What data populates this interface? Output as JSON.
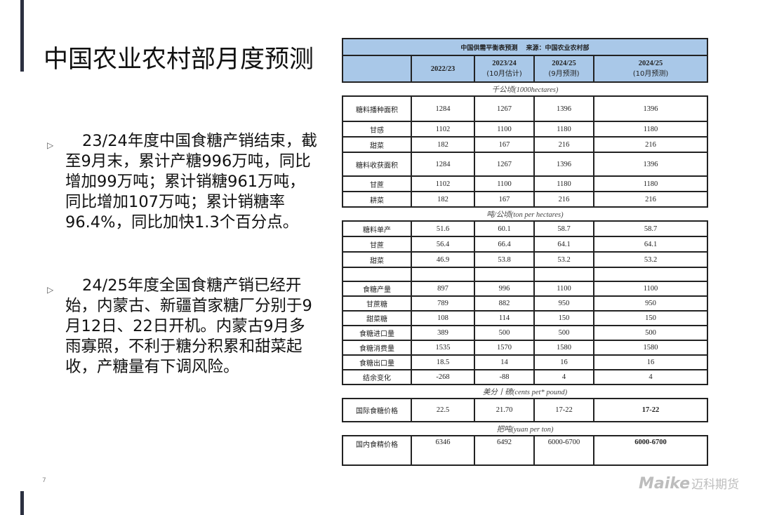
{
  "title": "中国农业农村部月度预测",
  "bullets": [
    "23/24年度中国食糖产销结束，截至9月末，累计产糖996万吨，同比增加99万吨；累计销糖961万吨，同比增加107万吨；累计销糖率96.4%，同比加快1.3个百分点。",
    "24/25年度全国食糖产销已经开始，内蒙古、新疆首家糖厂分别于9月12日、22日开机。内蒙古9月多雨寡照，不利于糖分积累和甜菜起收，产糖量有下调风险。"
  ],
  "table": {
    "caption": "中国供需平衡表预测　 来源：中国农业农村部",
    "headers": [
      {
        "main": "2022/23",
        "sub": ""
      },
      {
        "main": "2023/24",
        "sub": "(10月估计)"
      },
      {
        "main": "2024/25",
        "sub": "(9月预测)"
      },
      {
        "main": "2024/25",
        "sub": "(10月预测)"
      }
    ],
    "units": [
      "千公顷(1000hectares)",
      "吨/公顷(ton per hectares)",
      "美分丨磅(cents pet* pound)",
      "把吨(yuan per ton)"
    ],
    "area_rows": [
      [
        "糖料播种面积",
        "1284",
        "1267",
        "1396",
        "1396"
      ],
      [
        "甘感",
        "1102",
        "1100",
        "1180",
        "1180"
      ],
      [
        "甜菜",
        "182",
        "167",
        "216",
        "216"
      ],
      [
        "糖料收获面积",
        "1284",
        "1267",
        "1396",
        "1396"
      ],
      [
        "甘蔗",
        "1102",
        "1100",
        "1180",
        "1180"
      ],
      [
        "耕菜",
        "182",
        "167",
        "216",
        "216"
      ]
    ],
    "yield_rows": [
      [
        "糖料单产",
        "51.6",
        "60.1",
        "58.7",
        "58.7"
      ],
      [
        "甘蔗",
        "56.4",
        "66.4",
        "64.1",
        "64.1"
      ],
      [
        "甜菜",
        "46.9",
        "53.8",
        "53.2",
        "53.2"
      ]
    ],
    "balance_rows": [
      [
        "食糖产量",
        "897",
        "996",
        "1100",
        "1100"
      ],
      [
        "甘蔗糖",
        "789",
        "882",
        "950",
        "950"
      ],
      [
        "甜菜糖",
        "108",
        "114",
        "150",
        "150"
      ],
      [
        "食糖进口量",
        "389",
        "500",
        "500",
        "500"
      ],
      [
        "食糖消费量",
        "1535",
        "1570",
        "1580",
        "1580"
      ],
      [
        "食糖出口量",
        "18.5",
        "14",
        "16",
        "16"
      ],
      [
        "结余变化",
        "-268",
        "-88",
        "4",
        "4"
      ]
    ],
    "intl_price": [
      "国际食糖价格",
      "22.5",
      "21.70",
      "17-22",
      "17-22"
    ],
    "dom_price": [
      "国内食精价格",
      "6346",
      "6492",
      "6000-6700",
      "6000-6700"
    ]
  },
  "page_number": "7",
  "logo": {
    "en": "Maike",
    "cn": "迈科期货"
  },
  "colors": {
    "header_bg": "#a9c8e8",
    "accent_bar": "#2b3040"
  }
}
